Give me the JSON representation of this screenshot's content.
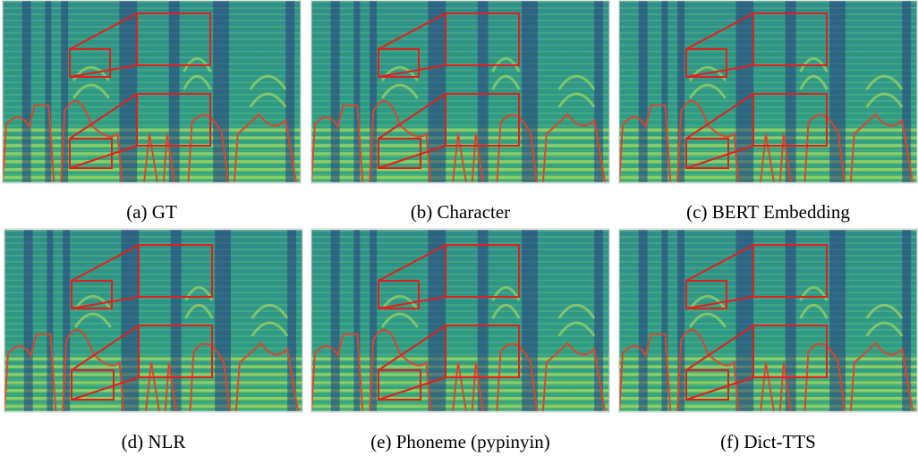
{
  "panels": [
    {
      "caption": "(a) GT"
    },
    {
      "caption": "(b) Character"
    },
    {
      "caption": "(c) BERT Embedding"
    },
    {
      "caption": "(d) NLR"
    },
    {
      "caption": "(e) Phoneme (pypinyin)"
    },
    {
      "caption": "(f) Dict-TTS"
    }
  ]
}
